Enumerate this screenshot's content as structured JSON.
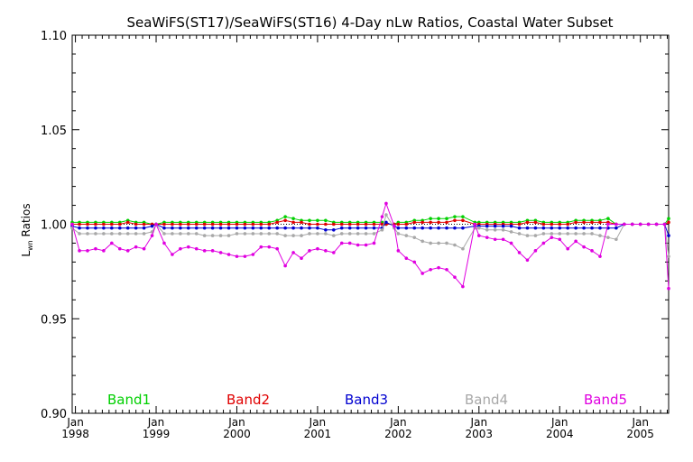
{
  "chart_data": {
    "type": "line",
    "title": "SeaWiFS(ST17)/SeaWiFS(ST16) 4-Day nLw Ratios, Coastal Water Subset",
    "xlabel": "",
    "ylabel_main": "L",
    "ylabel_sub": "wn",
    "ylabel_rest": " Ratios",
    "xlim": [
      1997.96,
      2005.35
    ],
    "ylim": [
      0.9,
      1.1
    ],
    "yticks": [
      "0.90",
      "0.95",
      "1.00",
      "1.05",
      "1.10"
    ],
    "xticks": [
      {
        "x": 1998,
        "month": "Jan",
        "year": "1998"
      },
      {
        "x": 1999,
        "month": "Jan",
        "year": "1999"
      },
      {
        "x": 2000,
        "month": "Jan",
        "year": "2000"
      },
      {
        "x": 2001,
        "month": "Jan",
        "year": "2001"
      },
      {
        "x": 2002,
        "month": "Jan",
        "year": "2002"
      },
      {
        "x": 2003,
        "month": "Jan",
        "year": "2003"
      },
      {
        "x": 2004,
        "month": "Jan",
        "year": "2004"
      },
      {
        "x": 2005,
        "month": "Jan",
        "year": "2005"
      }
    ],
    "reference_line": 1.0,
    "legend_placement": "bottom, inline",
    "series": [
      {
        "name": "Band1",
        "color": "#00d000",
        "x": [
          1997.96,
          1998.05,
          1998.15,
          1998.25,
          1998.35,
          1998.45,
          1998.55,
          1998.65,
          1998.75,
          1998.85,
          1998.95,
          1999.0,
          1999.1,
          1999.2,
          1999.3,
          1999.4,
          1999.5,
          1999.6,
          1999.7,
          1999.8,
          1999.9,
          2000.0,
          2000.1,
          2000.2,
          2000.3,
          2000.4,
          2000.5,
          2000.6,
          2000.7,
          2000.8,
          2000.9,
          2001.0,
          2001.1,
          2001.2,
          2001.3,
          2001.4,
          2001.5,
          2001.6,
          2001.7,
          2001.8,
          2001.85,
          2001.95,
          2002.0,
          2002.1,
          2002.2,
          2002.3,
          2002.4,
          2002.5,
          2002.6,
          2002.7,
          2002.8,
          2002.95,
          2003.0,
          2003.1,
          2003.2,
          2003.3,
          2003.4,
          2003.5,
          2003.6,
          2003.7,
          2003.8,
          2003.9,
          2004.0,
          2004.1,
          2004.2,
          2004.3,
          2004.4,
          2004.5,
          2004.6,
          2004.7,
          2004.8,
          2004.9,
          2005.0,
          2005.1,
          2005.2,
          2005.3,
          2005.35
        ],
        "values": [
          1.001,
          1.001,
          1.001,
          1.001,
          1.001,
          1.001,
          1.001,
          1.002,
          1.001,
          1.001,
          1.0,
          1.0,
          1.001,
          1.001,
          1.001,
          1.001,
          1.001,
          1.001,
          1.001,
          1.001,
          1.001,
          1.001,
          1.001,
          1.001,
          1.001,
          1.001,
          1.002,
          1.004,
          1.003,
          1.002,
          1.002,
          1.002,
          1.002,
          1.001,
          1.001,
          1.001,
          1.001,
          1.001,
          1.001,
          1.001,
          1.0,
          1.0,
          1.001,
          1.001,
          1.002,
          1.002,
          1.003,
          1.003,
          1.003,
          1.004,
          1.004,
          1.001,
          1.001,
          1.001,
          1.001,
          1.001,
          1.001,
          1.001,
          1.002,
          1.002,
          1.001,
          1.001,
          1.001,
          1.001,
          1.002,
          1.002,
          1.002,
          1.002,
          1.003,
          1.0,
          1.0,
          1.0,
          1.0,
          1.0,
          1.0,
          1.0,
          1.003
        ]
      },
      {
        "name": "Band2",
        "color": "#e00000",
        "x": [
          1997.96,
          1998.05,
          1998.15,
          1998.25,
          1998.35,
          1998.45,
          1998.55,
          1998.65,
          1998.75,
          1998.85,
          1998.95,
          1999.0,
          1999.1,
          1999.2,
          1999.3,
          1999.4,
          1999.5,
          1999.6,
          1999.7,
          1999.8,
          1999.9,
          2000.0,
          2000.1,
          2000.2,
          2000.3,
          2000.4,
          2000.5,
          2000.6,
          2000.7,
          2000.8,
          2000.9,
          2001.0,
          2001.1,
          2001.2,
          2001.3,
          2001.4,
          2001.5,
          2001.6,
          2001.7,
          2001.8,
          2001.85,
          2001.95,
          2002.0,
          2002.1,
          2002.2,
          2002.3,
          2002.4,
          2002.5,
          2002.6,
          2002.7,
          2002.8,
          2002.95,
          2003.0,
          2003.1,
          2003.2,
          2003.3,
          2003.4,
          2003.5,
          2003.6,
          2003.7,
          2003.8,
          2003.9,
          2004.0,
          2004.1,
          2004.2,
          2004.3,
          2004.4,
          2004.5,
          2004.6,
          2004.7,
          2004.8,
          2004.9,
          2005.0,
          2005.1,
          2005.2,
          2005.3,
          2005.35
        ],
        "values": [
          1.0,
          1.0,
          1.0,
          1.0,
          1.0,
          1.0,
          1.0,
          1.001,
          1.0,
          1.0,
          1.0,
          1.0,
          1.0,
          1.0,
          1.0,
          1.0,
          1.0,
          1.0,
          1.0,
          1.0,
          1.0,
          1.0,
          1.0,
          1.0,
          1.0,
          1.0,
          1.001,
          1.002,
          1.001,
          1.001,
          1.0,
          1.0,
          1.0,
          1.0,
          1.0,
          1.0,
          1.0,
          1.0,
          1.0,
          1.0,
          1.0,
          1.0,
          1.0,
          1.0,
          1.001,
          1.001,
          1.001,
          1.001,
          1.001,
          1.002,
          1.002,
          1.0,
          1.0,
          1.0,
          1.0,
          1.0,
          1.0,
          1.0,
          1.001,
          1.001,
          1.0,
          1.0,
          1.0,
          1.0,
          1.001,
          1.001,
          1.001,
          1.001,
          1.001,
          1.0,
          1.0,
          1.0,
          1.0,
          1.0,
          1.0,
          1.0,
          1.001
        ]
      },
      {
        "name": "Band3",
        "color": "#0000d0",
        "x": [
          1997.96,
          1998.05,
          1998.15,
          1998.25,
          1998.35,
          1998.45,
          1998.55,
          1998.65,
          1998.75,
          1998.85,
          1998.95,
          1999.0,
          1999.1,
          1999.2,
          1999.3,
          1999.4,
          1999.5,
          1999.6,
          1999.7,
          1999.8,
          1999.9,
          2000.0,
          2000.1,
          2000.2,
          2000.3,
          2000.4,
          2000.5,
          2000.6,
          2000.7,
          2000.8,
          2000.9,
          2001.0,
          2001.1,
          2001.2,
          2001.3,
          2001.4,
          2001.5,
          2001.6,
          2001.7,
          2001.8,
          2001.85,
          2001.95,
          2002.0,
          2002.1,
          2002.2,
          2002.3,
          2002.4,
          2002.5,
          2002.6,
          2002.7,
          2002.8,
          2002.95,
          2003.0,
          2003.1,
          2003.2,
          2003.3,
          2003.4,
          2003.5,
          2003.6,
          2003.7,
          2003.8,
          2003.9,
          2004.0,
          2004.1,
          2004.2,
          2004.3,
          2004.4,
          2004.5,
          2004.6,
          2004.7,
          2004.8,
          2004.9,
          2005.0,
          2005.1,
          2005.2,
          2005.3,
          2005.35
        ],
        "values": [
          0.999,
          0.998,
          0.998,
          0.998,
          0.998,
          0.998,
          0.998,
          0.998,
          0.998,
          0.998,
          0.999,
          1.0,
          0.998,
          0.998,
          0.998,
          0.998,
          0.998,
          0.998,
          0.998,
          0.998,
          0.998,
          0.998,
          0.998,
          0.998,
          0.998,
          0.998,
          0.998,
          0.998,
          0.998,
          0.998,
          0.998,
          0.998,
          0.997,
          0.997,
          0.998,
          0.998,
          0.998,
          0.998,
          0.998,
          0.998,
          1.001,
          0.999,
          0.998,
          0.998,
          0.998,
          0.998,
          0.998,
          0.998,
          0.998,
          0.998,
          0.998,
          0.999,
          0.999,
          0.999,
          0.999,
          0.999,
          0.999,
          0.998,
          0.998,
          0.998,
          0.998,
          0.998,
          0.998,
          0.998,
          0.998,
          0.998,
          0.998,
          0.998,
          0.998,
          0.998,
          1.0,
          1.0,
          1.0,
          1.0,
          1.0,
          1.0,
          0.994
        ]
      },
      {
        "name": "Band4",
        "color": "#a8a8a8",
        "x": [
          1997.96,
          1998.05,
          1998.15,
          1998.25,
          1998.35,
          1998.45,
          1998.55,
          1998.65,
          1998.75,
          1998.85,
          1998.95,
          1999.0,
          1999.1,
          1999.2,
          1999.3,
          1999.4,
          1999.5,
          1999.6,
          1999.7,
          1999.8,
          1999.9,
          2000.0,
          2000.1,
          2000.2,
          2000.3,
          2000.4,
          2000.5,
          2000.6,
          2000.7,
          2000.8,
          2000.9,
          2001.0,
          2001.1,
          2001.2,
          2001.3,
          2001.4,
          2001.5,
          2001.6,
          2001.7,
          2001.8,
          2001.85,
          2001.95,
          2002.0,
          2002.1,
          2002.2,
          2002.3,
          2002.4,
          2002.5,
          2002.6,
          2002.7,
          2002.8,
          2002.95,
          2003.0,
          2003.1,
          2003.2,
          2003.3,
          2003.4,
          2003.5,
          2003.6,
          2003.7,
          2003.8,
          2003.9,
          2004.0,
          2004.1,
          2004.2,
          2004.3,
          2004.4,
          2004.5,
          2004.6,
          2004.7,
          2004.8,
          2004.9,
          2005.0,
          2005.1,
          2005.2,
          2005.3,
          2005.35
        ],
        "values": [
          0.998,
          0.995,
          0.995,
          0.995,
          0.995,
          0.995,
          0.995,
          0.995,
          0.995,
          0.995,
          0.996,
          1.0,
          0.995,
          0.995,
          0.995,
          0.995,
          0.995,
          0.994,
          0.994,
          0.994,
          0.994,
          0.995,
          0.995,
          0.995,
          0.995,
          0.995,
          0.995,
          0.994,
          0.994,
          0.994,
          0.995,
          0.995,
          0.995,
          0.994,
          0.995,
          0.995,
          0.995,
          0.995,
          0.995,
          0.997,
          1.005,
          0.998,
          0.995,
          0.994,
          0.993,
          0.991,
          0.99,
          0.99,
          0.99,
          0.989,
          0.987,
          0.998,
          0.998,
          0.997,
          0.997,
          0.997,
          0.996,
          0.995,
          0.994,
          0.994,
          0.995,
          0.995,
          0.995,
          0.995,
          0.995,
          0.995,
          0.995,
          0.994,
          0.993,
          0.992,
          1.0,
          1.0,
          1.0,
          1.0,
          1.0,
          1.0,
          0.983
        ]
      },
      {
        "name": "Band5",
        "color": "#e000e0",
        "x": [
          1997.96,
          1998.05,
          1998.15,
          1998.25,
          1998.35,
          1998.45,
          1998.55,
          1998.65,
          1998.75,
          1998.85,
          1998.95,
          1999.0,
          1999.1,
          1999.2,
          1999.3,
          1999.4,
          1999.5,
          1999.6,
          1999.7,
          1999.8,
          1999.9,
          2000.0,
          2000.1,
          2000.2,
          2000.3,
          2000.4,
          2000.5,
          2000.6,
          2000.7,
          2000.8,
          2000.9,
          2001.0,
          2001.1,
          2001.2,
          2001.3,
          2001.4,
          2001.5,
          2001.6,
          2001.7,
          2001.8,
          2001.85,
          2001.95,
          2002.0,
          2002.1,
          2002.2,
          2002.3,
          2002.4,
          2002.5,
          2002.6,
          2002.7,
          2002.8,
          2002.95,
          2003.0,
          2003.1,
          2003.2,
          2003.3,
          2003.4,
          2003.5,
          2003.6,
          2003.7,
          2003.8,
          2003.9,
          2004.0,
          2004.1,
          2004.2,
          2004.3,
          2004.4,
          2004.5,
          2004.6,
          2004.7,
          2004.8,
          2004.9,
          2005.0,
          2005.1,
          2005.2,
          2005.3,
          2005.35
        ],
        "values": [
          1.0,
          0.986,
          0.986,
          0.987,
          0.986,
          0.99,
          0.987,
          0.986,
          0.988,
          0.987,
          0.994,
          1.0,
          0.99,
          0.984,
          0.987,
          0.988,
          0.987,
          0.986,
          0.986,
          0.985,
          0.984,
          0.983,
          0.983,
          0.984,
          0.988,
          0.988,
          0.987,
          0.978,
          0.985,
          0.982,
          0.986,
          0.987,
          0.986,
          0.985,
          0.99,
          0.99,
          0.989,
          0.989,
          0.99,
          1.004,
          1.011,
          0.999,
          0.986,
          0.982,
          0.98,
          0.974,
          0.976,
          0.977,
          0.976,
          0.972,
          0.967,
          1.0,
          0.994,
          0.993,
          0.992,
          0.992,
          0.99,
          0.985,
          0.981,
          0.986,
          0.99,
          0.993,
          0.992,
          0.987,
          0.991,
          0.988,
          0.986,
          0.983,
          1.0,
          1.0,
          1.0,
          1.0,
          1.0,
          1.0,
          1.0,
          1.0,
          0.966
        ]
      }
    ]
  }
}
